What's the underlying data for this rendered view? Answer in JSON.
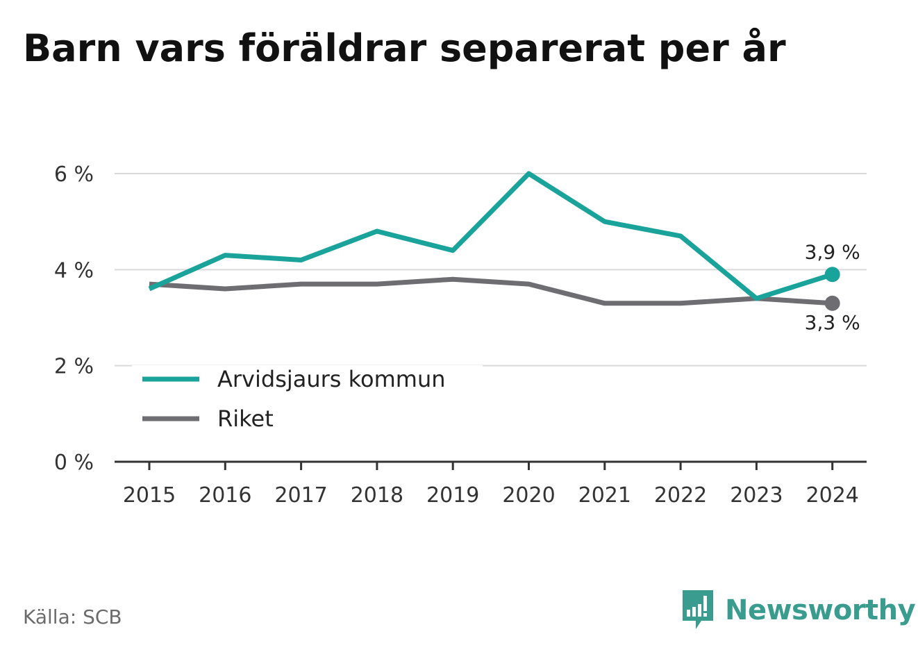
{
  "title": "Barn vars föräldrar separerat per år",
  "source": "Källa: SCB",
  "brand": {
    "name": "Newsworthy",
    "icon": "newsworthy-logo-icon"
  },
  "colors": {
    "kommun": "#1aa39a",
    "riket": "#6e6d72",
    "grid": "#d9d9d9",
    "axis": "#333333"
  },
  "chart_data": {
    "type": "line",
    "x": [
      "2015",
      "2016",
      "2017",
      "2018",
      "2019",
      "2020",
      "2021",
      "2022",
      "2023",
      "2024"
    ],
    "series": [
      {
        "name": "Arvidsjaurs kommun",
        "values": [
          3.6,
          4.3,
          4.2,
          4.8,
          4.4,
          6.0,
          5.0,
          4.7,
          3.4,
          3.9
        ],
        "end_label": "3,9 %"
      },
      {
        "name": "Riket",
        "values": [
          3.7,
          3.6,
          3.7,
          3.7,
          3.8,
          3.7,
          3.3,
          3.3,
          3.4,
          3.3
        ],
        "end_label": "3,3 %"
      }
    ],
    "yticks": [
      0,
      2,
      4,
      6
    ],
    "ytick_labels": [
      "0 %",
      "2 %",
      "4 %",
      "6 %"
    ],
    "ylim": [
      0,
      6
    ],
    "grid": true,
    "legend": "bottom-left",
    "xlabel": "",
    "ylabel": ""
  }
}
